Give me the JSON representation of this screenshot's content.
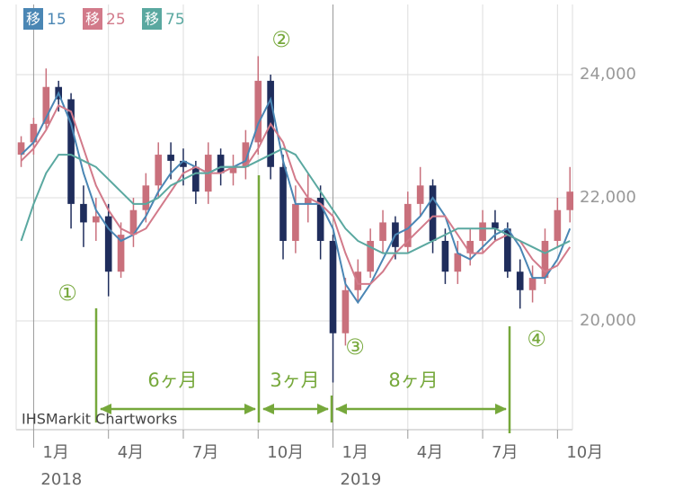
{
  "chart_data": {
    "type": "candlestick",
    "watermark": "IHSMarkit Chartworks",
    "legend_badge": "移",
    "up_color": "#c9707c",
    "down_color": "#1f2d5c",
    "xlim": [
      -0.7,
      21.6
    ],
    "xticks": [
      {
        "value": 0,
        "label": "1月"
      },
      {
        "value": 3,
        "label": "4月"
      },
      {
        "value": 6,
        "label": "7月"
      },
      {
        "value": 9,
        "label": "10月"
      },
      {
        "value": 12,
        "label": "1月"
      },
      {
        "value": 15,
        "label": "4月"
      },
      {
        "value": 18,
        "label": "7月"
      },
      {
        "value": 21,
        "label": "10月"
      }
    ],
    "year_labels": [
      {
        "value": 0,
        "label": "2018"
      },
      {
        "value": 12,
        "label": "2019"
      }
    ],
    "ylim": [
      18234,
      25139
    ],
    "yticks": [
      {
        "value": 20000,
        "label": "20,000"
      },
      {
        "value": 22000,
        "label": "22,000"
      },
      {
        "value": 24000,
        "label": "24,000"
      }
    ],
    "grid": true,
    "x": [
      -0.5,
      0,
      0.5,
      1,
      1.5,
      2,
      2.5,
      3,
      3.5,
      4,
      4.5,
      5,
      5.5,
      6,
      6.5,
      7,
      7.5,
      8,
      8.5,
      9,
      9.5,
      10,
      10.5,
      11,
      11.5,
      12,
      12.5,
      13,
      13.5,
      14,
      14.5,
      15,
      15.5,
      16,
      16.5,
      17,
      17.5,
      18,
      18.5,
      19,
      19.5,
      20,
      20.5,
      21,
      21.5
    ],
    "open": [
      22700,
      22900,
      23200,
      23800,
      23600,
      21900,
      21600,
      21700,
      20800,
      21400,
      21800,
      22200,
      22700,
      22600,
      22500,
      22100,
      22700,
      22400,
      22500,
      22900,
      23900,
      22500,
      21300,
      21900,
      22000,
      21300,
      19800,
      20500,
      20800,
      21300,
      21600,
      21200,
      21900,
      22200,
      21300,
      20800,
      21100,
      21300,
      21600,
      21500,
      20800,
      20500,
      20700,
      21300,
      21800
    ],
    "high": [
      23000,
      23300,
      24100,
      23900,
      23700,
      22200,
      22000,
      21900,
      21600,
      22000,
      22400,
      22900,
      22900,
      22800,
      22600,
      22900,
      22800,
      22700,
      23100,
      24300,
      24000,
      22700,
      22200,
      22400,
      22200,
      21400,
      20700,
      21000,
      21500,
      21800,
      21700,
      22100,
      22500,
      22300,
      21500,
      21300,
      21500,
      21800,
      21800,
      21600,
      21000,
      20900,
      21500,
      22000,
      22500
    ],
    "low": [
      22500,
      22700,
      23100,
      23400,
      21500,
      21200,
      21300,
      20400,
      20700,
      21200,
      21600,
      22000,
      22300,
      22200,
      21900,
      21900,
      22200,
      22200,
      22300,
      22700,
      22300,
      21000,
      21100,
      21600,
      21000,
      19000,
      19600,
      20300,
      20700,
      21100,
      21000,
      21100,
      21700,
      21100,
      20600,
      20600,
      20900,
      21100,
      21300,
      20700,
      20200,
      20300,
      20600,
      21200,
      21600
    ],
    "close": [
      22900,
      23200,
      23800,
      23600,
      21900,
      21600,
      21700,
      20800,
      21400,
      21800,
      22200,
      22700,
      22600,
      22500,
      22100,
      22700,
      22400,
      22500,
      22900,
      23900,
      22500,
      21300,
      21900,
      22000,
      21300,
      19800,
      20500,
      20800,
      21300,
      21600,
      21200,
      21900,
      22200,
      21300,
      20800,
      21100,
      21300,
      21600,
      21500,
      20800,
      20500,
      20700,
      21300,
      21800,
      22100
    ],
    "series": [
      {
        "name": "15",
        "color": "#4a86b4",
        "values": [
          22700,
          22900,
          23300,
          23700,
          23200,
          22400,
          21800,
          21500,
          21300,
          21400,
          21700,
          22100,
          22400,
          22600,
          22500,
          22400,
          22500,
          22500,
          22600,
          23200,
          23600,
          22600,
          21900,
          21900,
          21900,
          21500,
          20600,
          20300,
          20600,
          21000,
          21400,
          21500,
          21700,
          22000,
          21700,
          21100,
          21000,
          21200,
          21400,
          21500,
          21200,
          20700,
          20700,
          21000,
          21500
        ]
      },
      {
        "name": "25",
        "color": "#d27a8a",
        "values": [
          22600,
          22800,
          23100,
          23500,
          23400,
          22800,
          22200,
          21800,
          21500,
          21400,
          21500,
          21800,
          22100,
          22400,
          22500,
          22400,
          22400,
          22500,
          22500,
          22800,
          23200,
          22900,
          22300,
          22000,
          21900,
          21700,
          21100,
          20600,
          20600,
          20800,
          21100,
          21300,
          21500,
          21700,
          21700,
          21400,
          21100,
          21100,
          21300,
          21400,
          21300,
          21000,
          20800,
          20900,
          21200
        ]
      },
      {
        "name": "75",
        "color": "#5aa8a0",
        "values": [
          21300,
          21900,
          22400,
          22700,
          22700,
          22600,
          22500,
          22300,
          22100,
          21900,
          21900,
          22000,
          22200,
          22300,
          22400,
          22400,
          22500,
          22500,
          22500,
          22600,
          22700,
          22800,
          22700,
          22400,
          22100,
          21800,
          21500,
          21300,
          21200,
          21100,
          21100,
          21100,
          21200,
          21300,
          21400,
          21500,
          21500,
          21500,
          21500,
          21400,
          21300,
          21200,
          21100,
          21200,
          21300
        ]
      }
    ],
    "annotations": [
      "①",
      "②",
      "③",
      "④",
      "6ヶ月",
      "3ヶ月",
      "8ヶ月"
    ]
  }
}
